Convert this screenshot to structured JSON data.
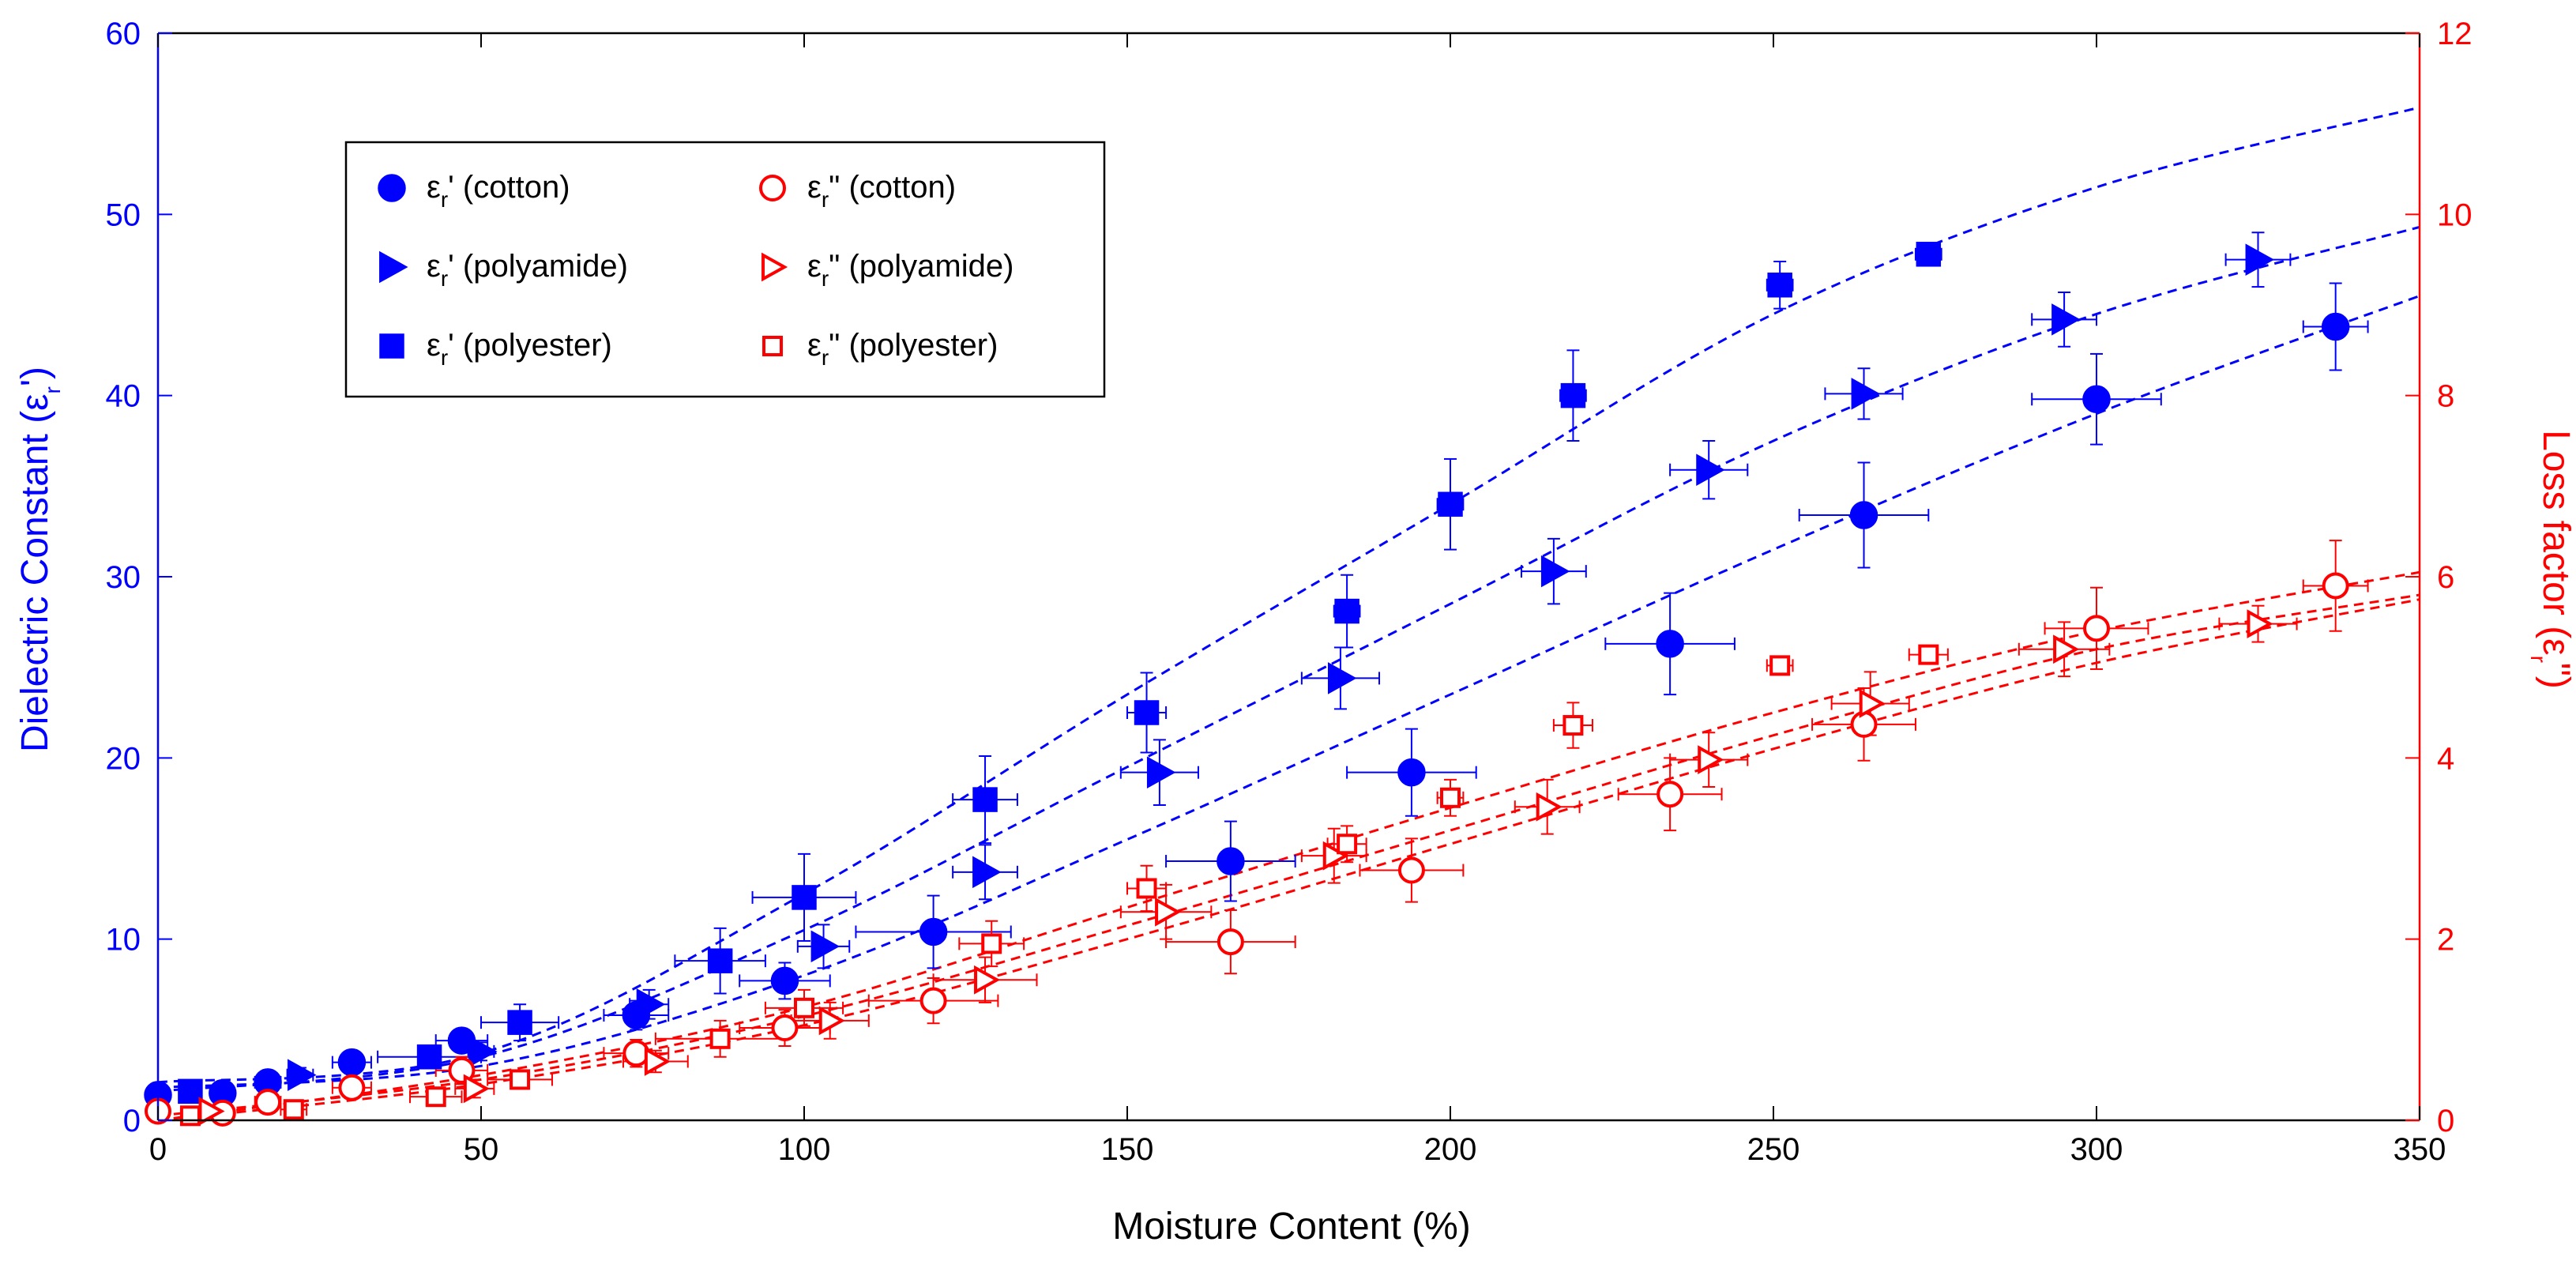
{
  "colors": {
    "left": "#0000ff",
    "right": "#ff0000",
    "axis": "#000000"
  },
  "chart_data": {
    "type": "scatter",
    "title": "",
    "xlabel": "Moisture Content (%)",
    "ylabel_left": {
      "main": "Dielectric Constant (ε",
      "sub": "r",
      "end": "')"
    },
    "ylabel_right": {
      "main": "Loss factor (ε",
      "sub": "r",
      "end": "\")"
    },
    "xlim": [
      0,
      350
    ],
    "ylim_left": [
      0,
      60
    ],
    "ylim_right": [
      0,
      12
    ],
    "xticks": [
      0,
      50,
      100,
      150,
      200,
      250,
      300,
      350
    ],
    "yticks_left": [
      0,
      10,
      20,
      30,
      40,
      50,
      60
    ],
    "yticks_right": [
      0,
      2,
      4,
      6,
      8,
      10,
      12
    ],
    "legend_position": "top-left",
    "series": [
      {
        "name": "εr' (cotton)",
        "label_pre": "ε",
        "label_sub": "r",
        "label_post": "' (cotton)",
        "axis": "left",
        "marker": "circle",
        "filled": true,
        "points": [
          {
            "x": 0,
            "y": 1.4,
            "xerr": 1,
            "yerr": 0.3
          },
          {
            "x": 10,
            "y": 1.5,
            "xerr": 1,
            "yerr": 0.3
          },
          {
            "x": 17,
            "y": 2.1,
            "xerr": 2,
            "yerr": 0.4
          },
          {
            "x": 30,
            "y": 3.2,
            "xerr": 3,
            "yerr": 0.5
          },
          {
            "x": 47,
            "y": 4.4,
            "xerr": 4,
            "yerr": 0.6
          },
          {
            "x": 74,
            "y": 5.8,
            "xerr": 5,
            "yerr": 0.8
          },
          {
            "x": 97,
            "y": 7.7,
            "xerr": 7,
            "yerr": 1.0
          },
          {
            "x": 120,
            "y": 10.4,
            "xerr": 12,
            "yerr": 2.0
          },
          {
            "x": 166,
            "y": 14.3,
            "xerr": 10,
            "yerr": 2.2
          },
          {
            "x": 194,
            "y": 19.2,
            "xerr": 10,
            "yerr": 2.4
          },
          {
            "x": 234,
            "y": 26.3,
            "xerr": 10,
            "yerr": 2.8
          },
          {
            "x": 264,
            "y": 33.4,
            "xerr": 10,
            "yerr": 2.9
          },
          {
            "x": 300,
            "y": 39.8,
            "xerr": 10,
            "yerr": 2.5
          },
          {
            "x": 337,
            "y": 43.8,
            "xerr": 5,
            "yerr": 2.4
          }
        ],
        "fit": [
          [
            0,
            1.8
          ],
          [
            50,
            3.0
          ],
          [
            100,
            8.0
          ],
          [
            150,
            15.5
          ],
          [
            200,
            23.5
          ],
          [
            250,
            31.5
          ],
          [
            300,
            39.0
          ],
          [
            350,
            45.5
          ]
        ]
      },
      {
        "name": "εr' (polyamide)",
        "label_pre": "ε",
        "label_sub": "r",
        "label_post": "' (polyamide)",
        "axis": "left",
        "marker": "triangle",
        "filled": true,
        "points": [
          {
            "x": 22,
            "y": 2.5,
            "xerr": 2,
            "yerr": 0.4
          },
          {
            "x": 50,
            "y": 3.8,
            "xerr": 2,
            "yerr": 0.5
          },
          {
            "x": 76,
            "y": 6.4,
            "xerr": 3,
            "yerr": 0.8
          },
          {
            "x": 103,
            "y": 9.6,
            "xerr": 4,
            "yerr": 1.2
          },
          {
            "x": 128,
            "y": 13.7,
            "xerr": 5,
            "yerr": 1.5
          },
          {
            "x": 155,
            "y": 19.2,
            "xerr": 6,
            "yerr": 1.8
          },
          {
            "x": 183,
            "y": 24.4,
            "xerr": 6,
            "yerr": 1.7
          },
          {
            "x": 216,
            "y": 30.3,
            "xerr": 5,
            "yerr": 1.8
          },
          {
            "x": 240,
            "y": 35.9,
            "xerr": 6,
            "yerr": 1.6
          },
          {
            "x": 264,
            "y": 40.1,
            "xerr": 6,
            "yerr": 1.4
          },
          {
            "x": 295,
            "y": 44.2,
            "xerr": 5,
            "yerr": 1.5
          },
          {
            "x": 325,
            "y": 47.5,
            "xerr": 5,
            "yerr": 1.5
          }
        ],
        "fit": [
          [
            0,
            1.6
          ],
          [
            50,
            3.5
          ],
          [
            100,
            10.5
          ],
          [
            150,
            19.5
          ],
          [
            200,
            28.5
          ],
          [
            250,
            37.5
          ],
          [
            300,
            44.5
          ],
          [
            350,
            49.3
          ]
        ]
      },
      {
        "name": "εr' (polyester)",
        "label_pre": "ε",
        "label_sub": "r",
        "label_post": "' (polyester)",
        "axis": "left",
        "marker": "square",
        "filled": true,
        "points": [
          {
            "x": 5,
            "y": 1.6,
            "xerr": 1,
            "yerr": 0.3
          },
          {
            "x": 42,
            "y": 3.5,
            "xerr": 8,
            "yerr": 0.6
          },
          {
            "x": 56,
            "y": 5.4,
            "xerr": 6,
            "yerr": 1.0
          },
          {
            "x": 87,
            "y": 8.8,
            "xerr": 7,
            "yerr": 1.8
          },
          {
            "x": 100,
            "y": 12.3,
            "xerr": 8,
            "yerr": 2.4
          },
          {
            "x": 128,
            "y": 17.7,
            "xerr": 5,
            "yerr": 2.4
          },
          {
            "x": 153,
            "y": 22.5,
            "xerr": 3,
            "yerr": 2.2
          },
          {
            "x": 184,
            "y": 28.1,
            "xerr": 2,
            "yerr": 2.0
          },
          {
            "x": 200,
            "y": 34.0,
            "xerr": 2,
            "yerr": 2.5
          },
          {
            "x": 219,
            "y": 40.0,
            "xerr": 2,
            "yerr": 2.5
          },
          {
            "x": 251,
            "y": 46.1,
            "xerr": 2,
            "yerr": 1.3
          },
          {
            "x": 274,
            "y": 47.8,
            "xerr": 2,
            "yerr": 0.5
          }
        ],
        "fit": [
          [
            0,
            2.1
          ],
          [
            50,
            3.7
          ],
          [
            100,
            12.5
          ],
          [
            150,
            23.5
          ],
          [
            200,
            34.0
          ],
          [
            250,
            44.5
          ],
          [
            300,
            51.5
          ],
          [
            350,
            55.9
          ]
        ]
      },
      {
        "name": "εr\" (cotton)",
        "label_pre": "ε",
        "label_sub": "r",
        "label_post": "\" (cotton)",
        "axis": "right",
        "marker": "circle",
        "filled": false,
        "points": [
          {
            "x": 0,
            "y": 0.1,
            "xerr": 1,
            "yerr": 0.05
          },
          {
            "x": 10,
            "y": 0.08,
            "xerr": 1,
            "yerr": 0.05
          },
          {
            "x": 17,
            "y": 0.2,
            "xerr": 2,
            "yerr": 0.05
          },
          {
            "x": 30,
            "y": 0.36,
            "xerr": 3,
            "yerr": 0.1
          },
          {
            "x": 47,
            "y": 0.55,
            "xerr": 4,
            "yerr": 0.15
          },
          {
            "x": 74,
            "y": 0.74,
            "xerr": 5,
            "yerr": 0.15
          },
          {
            "x": 97,
            "y": 1.02,
            "xerr": 7,
            "yerr": 0.2
          },
          {
            "x": 120,
            "y": 1.32,
            "xerr": 10,
            "yerr": 0.25
          },
          {
            "x": 166,
            "y": 1.97,
            "xerr": 10,
            "yerr": 0.35
          },
          {
            "x": 194,
            "y": 2.76,
            "xerr": 8,
            "yerr": 0.35
          },
          {
            "x": 234,
            "y": 3.6,
            "xerr": 8,
            "yerr": 0.4
          },
          {
            "x": 264,
            "y": 4.37,
            "xerr": 8,
            "yerr": 0.4
          },
          {
            "x": 300,
            "y": 5.43,
            "xerr": 8,
            "yerr": 0.45
          },
          {
            "x": 337,
            "y": 5.9,
            "xerr": 5,
            "yerr": 0.5
          }
        ],
        "fit": [
          [
            0,
            0.0
          ],
          [
            50,
            0.4
          ],
          [
            100,
            1.05
          ],
          [
            150,
            2.0
          ],
          [
            200,
            3.05
          ],
          [
            250,
            4.1
          ],
          [
            300,
            5.05
          ],
          [
            350,
            5.75
          ]
        ]
      },
      {
        "name": "εr\" (polyamide)",
        "label_pre": "ε",
        "label_sub": "r",
        "label_post": "\" (polyamide)",
        "axis": "right",
        "marker": "triangle",
        "filled": false,
        "points": [
          {
            "x": 8,
            "y": 0.1,
            "xerr": 1,
            "yerr": 0.05
          },
          {
            "x": 49,
            "y": 0.35,
            "xerr": 3,
            "yerr": 0.1
          },
          {
            "x": 77,
            "y": 0.65,
            "xerr": 5,
            "yerr": 0.12
          },
          {
            "x": 104,
            "y": 1.1,
            "xerr": 6,
            "yerr": 0.2
          },
          {
            "x": 128,
            "y": 1.55,
            "xerr": 8,
            "yerr": 0.25
          },
          {
            "x": 156,
            "y": 2.3,
            "xerr": 7,
            "yerr": 0.3
          },
          {
            "x": 182,
            "y": 2.92,
            "xerr": 5,
            "yerr": 0.3
          },
          {
            "x": 215,
            "y": 3.46,
            "xerr": 5,
            "yerr": 0.3
          },
          {
            "x": 240,
            "y": 3.98,
            "xerr": 6,
            "yerr": 0.3
          },
          {
            "x": 265,
            "y": 4.6,
            "xerr": 6,
            "yerr": 0.35
          },
          {
            "x": 295,
            "y": 5.2,
            "xerr": 7,
            "yerr": 0.3
          },
          {
            "x": 325,
            "y": 5.48,
            "xerr": 6,
            "yerr": 0.2
          }
        ],
        "fit": [
          [
            0,
            0.05
          ],
          [
            50,
            0.45
          ],
          [
            100,
            1.15
          ],
          [
            150,
            2.15
          ],
          [
            200,
            3.2
          ],
          [
            250,
            4.25
          ],
          [
            300,
            5.2
          ],
          [
            350,
            5.8
          ]
        ]
      },
      {
        "name": "εr\" (polyester)",
        "label_pre": "ε",
        "label_sub": "r",
        "label_post": "\" (polyester)",
        "axis": "right",
        "marker": "square",
        "filled": false,
        "points": [
          {
            "x": 5,
            "y": 0.05,
            "xerr": 1,
            "yerr": 0.05
          },
          {
            "x": 21,
            "y": 0.12,
            "xerr": 2,
            "yerr": 0.05
          },
          {
            "x": 43,
            "y": 0.26,
            "xerr": 4,
            "yerr": 0.1
          },
          {
            "x": 56,
            "y": 0.45,
            "xerr": 5,
            "yerr": 0.1
          },
          {
            "x": 87,
            "y": 0.9,
            "xerr": 10,
            "yerr": 0.2
          },
          {
            "x": 100,
            "y": 1.24,
            "xerr": 6,
            "yerr": 0.2
          },
          {
            "x": 129,
            "y": 1.95,
            "xerr": 5,
            "yerr": 0.25
          },
          {
            "x": 153,
            "y": 2.56,
            "xerr": 3,
            "yerr": 0.25
          },
          {
            "x": 184,
            "y": 3.05,
            "xerr": 3,
            "yerr": 0.2
          },
          {
            "x": 200,
            "y": 3.56,
            "xerr": 2,
            "yerr": 0.2
          },
          {
            "x": 219,
            "y": 4.36,
            "xerr": 3,
            "yerr": 0.25
          },
          {
            "x": 251,
            "y": 5.02,
            "xerr": 2,
            "yerr": 0.1
          },
          {
            "x": 274,
            "y": 5.14,
            "xerr": 3,
            "yerr": 0.1
          }
        ],
        "fit": [
          [
            0,
            0.0
          ],
          [
            50,
            0.5
          ],
          [
            100,
            1.25
          ],
          [
            150,
            2.35
          ],
          [
            200,
            3.45
          ],
          [
            250,
            4.5
          ],
          [
            300,
            5.4
          ],
          [
            350,
            6.05
          ]
        ]
      }
    ]
  }
}
